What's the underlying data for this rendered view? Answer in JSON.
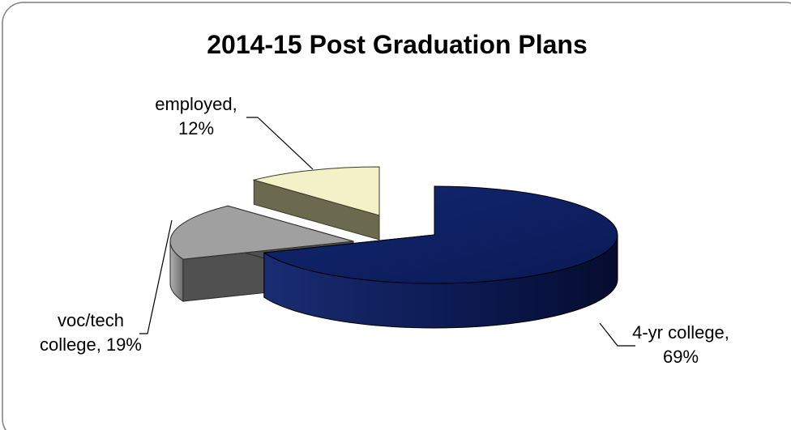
{
  "chart_data": {
    "type": "pie",
    "title": "2014-15 Post Graduation Plans",
    "slices": [
      {
        "label_lines": [
          "4-yr college,",
          "69%"
        ],
        "category": "4-yr college",
        "value": 69,
        "color": "#0e1f5e"
      },
      {
        "label_lines": [
          "voc/tech",
          "college, 19%"
        ],
        "category": "voc/tech college",
        "value": 19,
        "color": "#a0a0a0"
      },
      {
        "label_lines": [
          "employed,",
          "12%"
        ],
        "category": "employed",
        "value": 12,
        "color": "#f3f1c8"
      }
    ],
    "style": "3d-exploded",
    "legend": "none"
  }
}
